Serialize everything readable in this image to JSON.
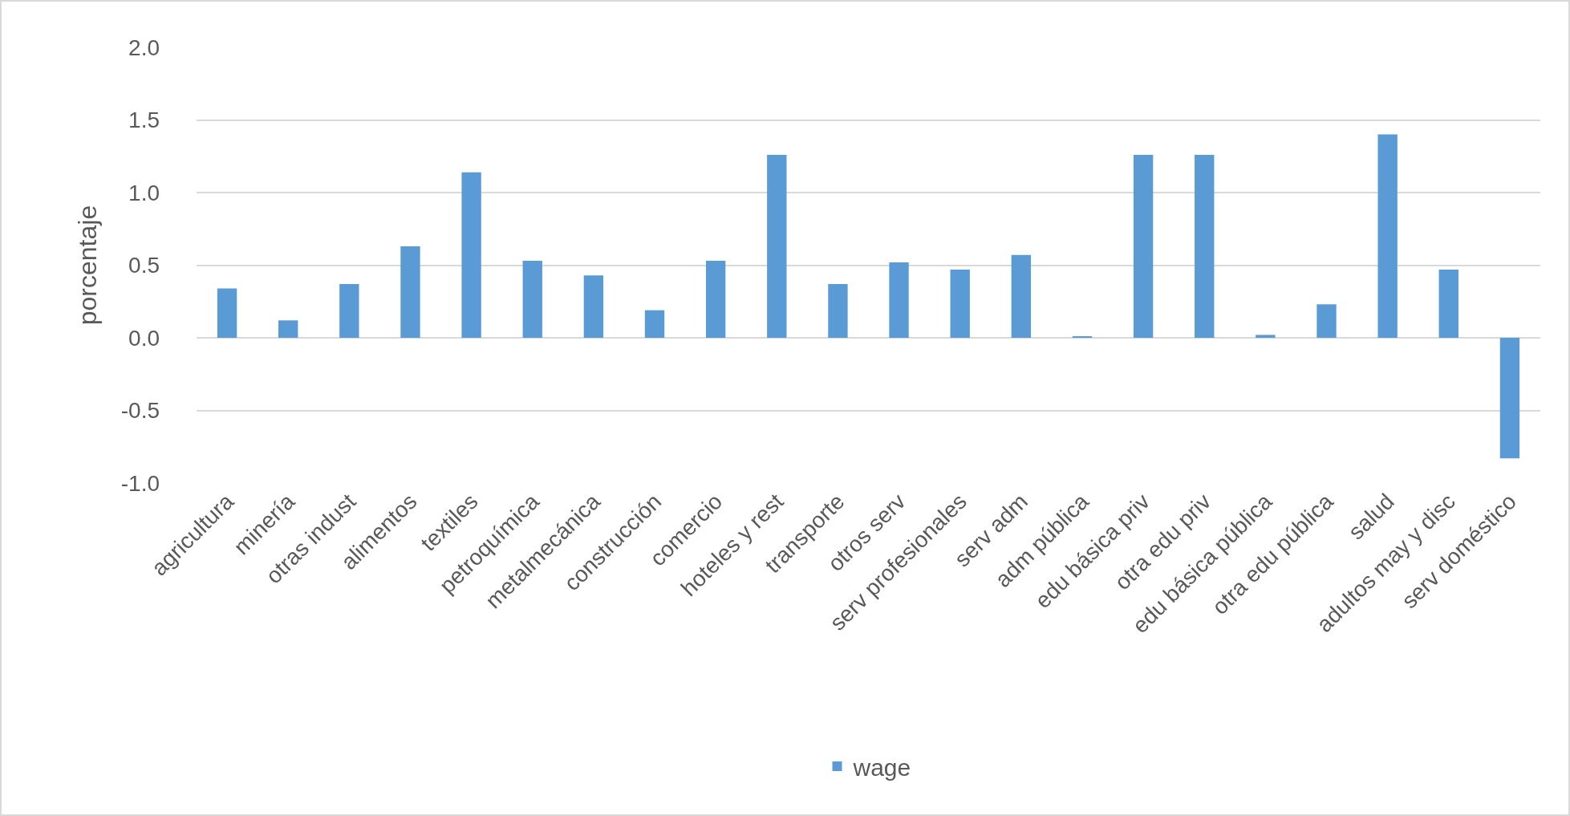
{
  "chart_data": {
    "type": "bar",
    "ylabel": "porcentaje",
    "categories": [
      "agricultura",
      "minería",
      "otras indust",
      "alimentos",
      "textiles",
      "petroquímica",
      "metalmecánica",
      "construcción",
      "comercio",
      "hoteles y rest",
      "transporte",
      "otros serv",
      "serv profesionales",
      "serv adm",
      "adm pública",
      "edu básica priv",
      "otra edu priv",
      "edu básica pública",
      "otra edu pública",
      "salud",
      "adultos may y disc",
      "serv doméstico"
    ],
    "series": [
      {
        "name": "wage",
        "color": "#5b9bd5",
        "values": [
          0.34,
          0.12,
          0.37,
          0.63,
          1.14,
          0.53,
          0.43,
          0.19,
          0.53,
          1.26,
          0.37,
          0.52,
          0.47,
          0.57,
          0.01,
          1.26,
          1.26,
          0.02,
          0.23,
          1.4,
          0.47,
          -0.83
        ]
      }
    ],
    "ylim": [
      -1.0,
      2.0
    ],
    "yticks": [
      {
        "value": -1,
        "label": "-1.0"
      },
      {
        "value": -0.5,
        "label": "-0.5"
      },
      {
        "value": 0,
        "label": "0.0"
      },
      {
        "value": 0.5,
        "label": "0.5"
      },
      {
        "value": 1,
        "label": "1.0"
      },
      {
        "value": 1.5,
        "label": "1.5"
      },
      {
        "value": 2,
        "label": "2.0"
      }
    ],
    "grid": "y",
    "legend": "bottom"
  }
}
